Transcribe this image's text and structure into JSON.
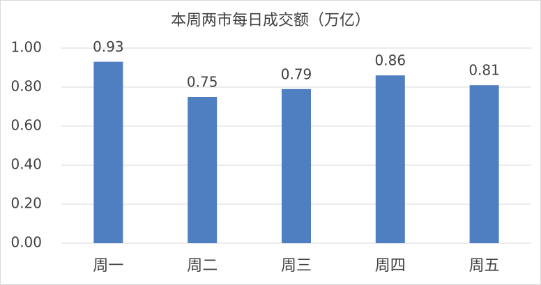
{
  "chart_data": {
    "type": "bar",
    "title": "本周两市每日成交额（万亿）",
    "categories": [
      "周一",
      "周二",
      "周三",
      "周四",
      "周五"
    ],
    "values": [
      0.93,
      0.75,
      0.79,
      0.86,
      0.81
    ],
    "color": "#4f7fc0",
    "ylim": [
      0,
      1
    ],
    "yticks": [
      {
        "value": 0,
        "label": "0.00"
      },
      {
        "value": 0.2,
        "label": "0.20"
      },
      {
        "value": 0.4,
        "label": "0.40"
      },
      {
        "value": 0.6,
        "label": "0.60"
      },
      {
        "value": 0.8,
        "label": "0.80"
      },
      {
        "value": 1,
        "label": "1.00"
      }
    ],
    "grid": true
  }
}
